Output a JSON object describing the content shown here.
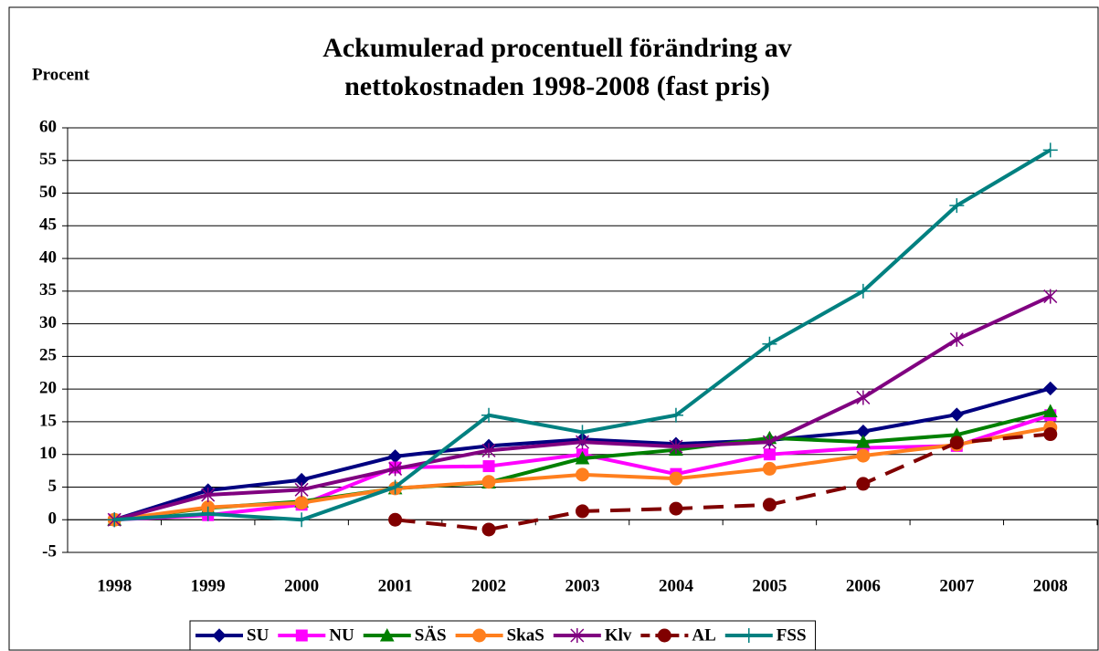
{
  "chart_data": {
    "type": "line",
    "title": "Ackumulerad procentuell förändring av",
    "subtitle": "nettokostnaden 1998-2008 (fast pris)",
    "y_label": "Procent",
    "categories": [
      "1998",
      "1999",
      "2000",
      "2001",
      "2002",
      "2003",
      "2004",
      "2005",
      "2006",
      "2007",
      "2008"
    ],
    "series": [
      {
        "name": "SU",
        "color": "#000080",
        "marker": "diamond",
        "values": [
          0,
          4.5,
          6.1,
          9.7,
          11.3,
          12.3,
          11.6,
          12.2,
          13.5,
          16.1,
          20.1
        ]
      },
      {
        "name": "NU",
        "color": "#ff00ff",
        "marker": "square",
        "values": [
          0,
          0.7,
          2.3,
          8.0,
          8.2,
          10.0,
          7.0,
          10.0,
          11.0,
          11.3,
          16.0
        ]
      },
      {
        "name": "SÄS",
        "color": "#008000",
        "marker": "triangle",
        "values": [
          0,
          1.8,
          2.8,
          4.8,
          5.7,
          9.4,
          10.7,
          12.5,
          11.9,
          13.0,
          16.6
        ]
      },
      {
        "name": "SkaS",
        "color": "#ff7f1e",
        "marker": "circle",
        "values": [
          0,
          1.9,
          2.6,
          4.8,
          5.8,
          6.9,
          6.3,
          7.8,
          9.8,
          11.5,
          14.1
        ]
      },
      {
        "name": "Klv",
        "color": "#800080",
        "marker": "asterisk",
        "values": [
          0,
          3.8,
          4.6,
          7.8,
          10.6,
          11.9,
          11.2,
          11.9,
          18.7,
          27.6,
          34.2
        ]
      },
      {
        "name": "AL",
        "color": "#800000",
        "marker": "circle",
        "dash": true,
        "values": [
          null,
          null,
          null,
          0,
          -1.5,
          1.3,
          1.7,
          2.3,
          5.5,
          11.8,
          13.1
        ]
      },
      {
        "name": "FSS",
        "color": "#008080",
        "marker": "plus",
        "values": [
          0,
          0.9,
          0,
          5.0,
          16.0,
          13.4,
          16.0,
          26.9,
          35.0,
          48.1,
          56.6
        ]
      }
    ],
    "ylim": [
      -5,
      60
    ],
    "yticks": [
      -5,
      0,
      5,
      10,
      15,
      20,
      25,
      30,
      35,
      40,
      45,
      50,
      55,
      60
    ],
    "grid": true,
    "legend": "bottom"
  }
}
